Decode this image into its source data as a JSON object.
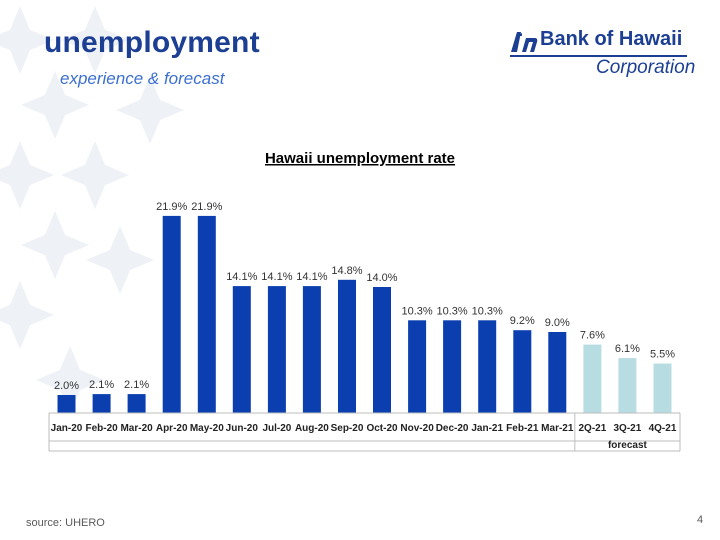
{
  "slide": {
    "title": "unemployment",
    "subtitle": "experience & forecast",
    "logo_name": "Bank of Hawaii",
    "logo_corp": "Corporation",
    "source": "source: UHERO",
    "page_number": "4"
  },
  "colors": {
    "title": "#1c3f94",
    "subtitle": "#3b6fd0",
    "actual_bar": "#0b3fb0",
    "forecast_bar": "#b7dde2",
    "background_pattern": "#eef2f7"
  },
  "chart_data": {
    "type": "bar",
    "title": "Hawaii unemployment rate",
    "categories": [
      "Jan-20",
      "Feb-20",
      "Mar-20",
      "Apr-20",
      "May-20",
      "Jun-20",
      "Jul-20",
      "Aug-20",
      "Sep-20",
      "Oct-20",
      "Nov-20",
      "Dec-20",
      "Jan-21",
      "Feb-21",
      "Mar-21",
      "2Q-21",
      "3Q-21",
      "4Q-21"
    ],
    "values": [
      2.0,
      2.1,
      2.1,
      21.9,
      21.9,
      14.1,
      14.1,
      14.1,
      14.8,
      14.0,
      10.3,
      10.3,
      10.3,
      9.2,
      9.0,
      7.6,
      6.1,
      5.5
    ],
    "labels": [
      "2.0%",
      "2.1%",
      "2.1%",
      "21.9%",
      "21.9%",
      "14.1%",
      "14.1%",
      "14.1%",
      "14.8%",
      "14.0%",
      "10.3%",
      "10.3%",
      "10.3%",
      "9.2%",
      "9.0%",
      "7.6%",
      "6.1%",
      "5.5%"
    ],
    "forecast_start_index": 15,
    "group_label": "forecast",
    "ylim": [
      0,
      25
    ],
    "grid": false,
    "xlabel": "",
    "ylabel": ""
  }
}
